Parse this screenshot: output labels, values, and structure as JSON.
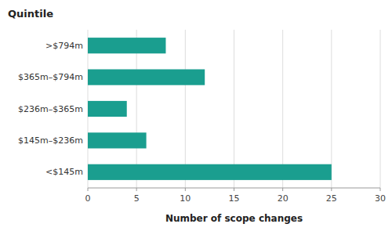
{
  "chart_data": {
    "type": "bar",
    "orientation": "horizontal",
    "categories": [
      ">$794m",
      "$365m–$794m",
      "$236m–$365m",
      "$145m–$236m",
      "<$145m"
    ],
    "values": [
      8,
      12,
      4,
      6,
      25
    ],
    "color": "#1a9e8f",
    "xlabel": "Number of scope changes",
    "ylabel": "Quintile",
    "xlim": [
      0,
      30
    ],
    "xticks": [
      0,
      5,
      10,
      15,
      20,
      25,
      30
    ],
    "grid": true
  }
}
